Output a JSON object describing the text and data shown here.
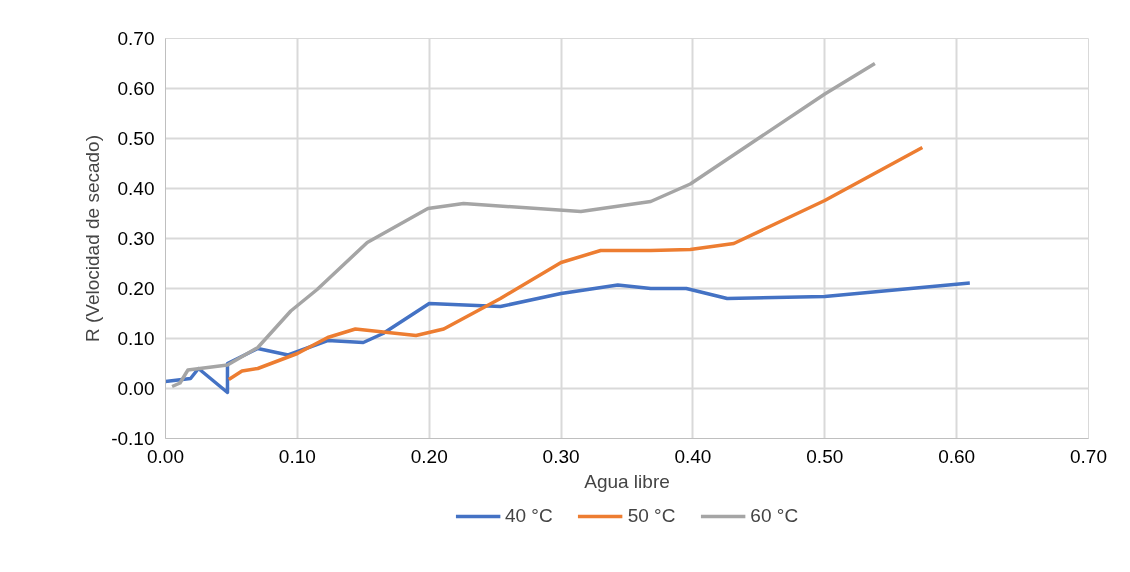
{
  "chart_data": {
    "type": "line",
    "xlabel": "Agua libre",
    "ylabel": "R (Velocidad de secado)",
    "xlim": [
      0,
      0.7
    ],
    "ylim": [
      -0.1,
      0.7
    ],
    "xticks": [
      {
        "value": 0,
        "label": "0.00"
      },
      {
        "value": 0.1,
        "label": "0.10"
      },
      {
        "value": 0.2,
        "label": "0.20"
      },
      {
        "value": 0.3,
        "label": "0.30"
      },
      {
        "value": 0.4,
        "label": "0.40"
      },
      {
        "value": 0.5,
        "label": "0.50"
      },
      {
        "value": 0.6,
        "label": "0.60"
      },
      {
        "value": 0.7,
        "label": "0.70"
      }
    ],
    "yticks": [
      {
        "value": -0.1,
        "label": "-0.10"
      },
      {
        "value": 0,
        "label": "0.00"
      },
      {
        "value": 0.1,
        "label": "0.10"
      },
      {
        "value": 0.2,
        "label": "0.20"
      },
      {
        "value": 0.3,
        "label": "0.30"
      },
      {
        "value": 0.4,
        "label": "0.40"
      },
      {
        "value": 0.5,
        "label": "0.50"
      },
      {
        "value": 0.6,
        "label": "0.60"
      },
      {
        "value": 0.7,
        "label": "0.70"
      }
    ],
    "grid": true,
    "legend": "bottom",
    "marker": "none",
    "line_style": "solid",
    "series": [
      {
        "name": "40 °C",
        "color": "#4472c4",
        "x": [
          0,
          0.019,
          0.025,
          0.047,
          0.047,
          0.07,
          0.093,
          0.123,
          0.15,
          0.165,
          0.2,
          0.254,
          0.3,
          0.343,
          0.368,
          0.395,
          0.426,
          0.5,
          0.61
        ],
        "values": [
          0.014,
          0.02,
          0.04,
          -0.008,
          0.05,
          0.08,
          0.067,
          0.096,
          0.092,
          0.11,
          0.17,
          0.164,
          0.19,
          0.207,
          0.2,
          0.2,
          0.18,
          0.184,
          0.211
        ]
      },
      {
        "name": "50 °C",
        "color": "#ed7d31",
        "x": [
          0.048,
          0.058,
          0.07,
          0.1,
          0.123,
          0.144,
          0.19,
          0.211,
          0.254,
          0.3,
          0.33,
          0.368,
          0.398,
          0.431,
          0.5,
          0.574
        ],
        "values": [
          0.018,
          0.035,
          0.04,
          0.07,
          0.102,
          0.119,
          0.106,
          0.119,
          0.18,
          0.252,
          0.276,
          0.276,
          0.278,
          0.29,
          0.376,
          0.482
        ]
      },
      {
        "name": "60 °C",
        "color": "#a5a5a5",
        "x": [
          0.005,
          0.011,
          0.017,
          0.047,
          0.07,
          0.095,
          0.115,
          0.153,
          0.199,
          0.226,
          0.315,
          0.368,
          0.398,
          0.5,
          0.538
        ],
        "values": [
          0.004,
          0.011,
          0.037,
          0.047,
          0.082,
          0.155,
          0.198,
          0.292,
          0.36,
          0.37,
          0.354,
          0.374,
          0.409,
          0.589,
          0.65
        ]
      }
    ]
  }
}
